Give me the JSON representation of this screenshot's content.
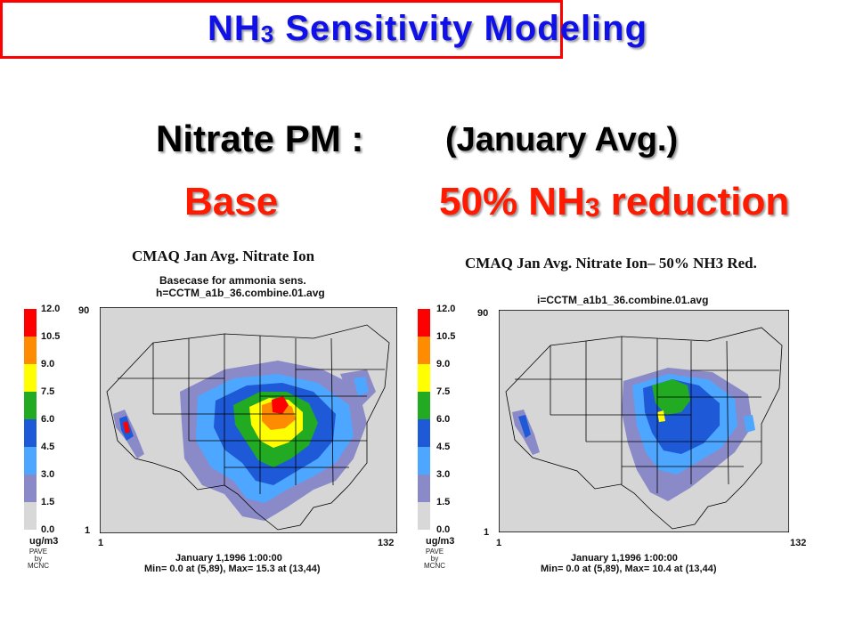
{
  "title": {
    "main": "NH",
    "sub": "3",
    "rest": " Sensitivity Modeling"
  },
  "subtitle": {
    "left": "Nitrate PM :",
    "right": "(January Avg.)"
  },
  "labels": {
    "base": "Base",
    "reduction_pre": "50% NH",
    "reduction_sub": "3",
    "reduction_post": " reduction"
  },
  "colorbar": {
    "ticks": [
      "12.0",
      "10.5",
      "9.0",
      "7.5",
      "6.0",
      "4.5",
      "3.0",
      "1.5",
      "0.0"
    ],
    "colors": [
      "#ff0000",
      "#ff8c00",
      "#ffff00",
      "#22aa22",
      "#1e5ad8",
      "#4da6ff",
      "#8a8ac8",
      "#d8d8d8"
    ],
    "unit": "ug/m3"
  },
  "credit": {
    "line1": "PAVE",
    "line2": "by",
    "line3": "MCNC"
  },
  "panels": [
    {
      "title": "CMAQ Jan Avg. Nitrate Ion",
      "sub1": "Basecase for ammonia sens.",
      "sub2": "h=CCTM_a1b_36.combine.01.avg",
      "y_top": "90",
      "y_bottom": "1",
      "x_left": "1",
      "x_right": "132",
      "time": "January 1,1996 1:00:00",
      "stats": "Min=  0.0 at (5,89), Max= 15.3 at (13,44)"
    },
    {
      "title": "CMAQ Jan Avg. Nitrate Ion– 50% NH3 Red.",
      "sub1": "",
      "sub2": "i=CCTM_a1b1_36.combine.01.avg",
      "y_top": "90",
      "y_bottom": "1",
      "x_left": "1",
      "x_right": "132",
      "time": "January 1,1996 1:00:00",
      "stats": "Min=  0.0 at (5,89), Max= 10.4 at (13,44)"
    }
  ]
}
